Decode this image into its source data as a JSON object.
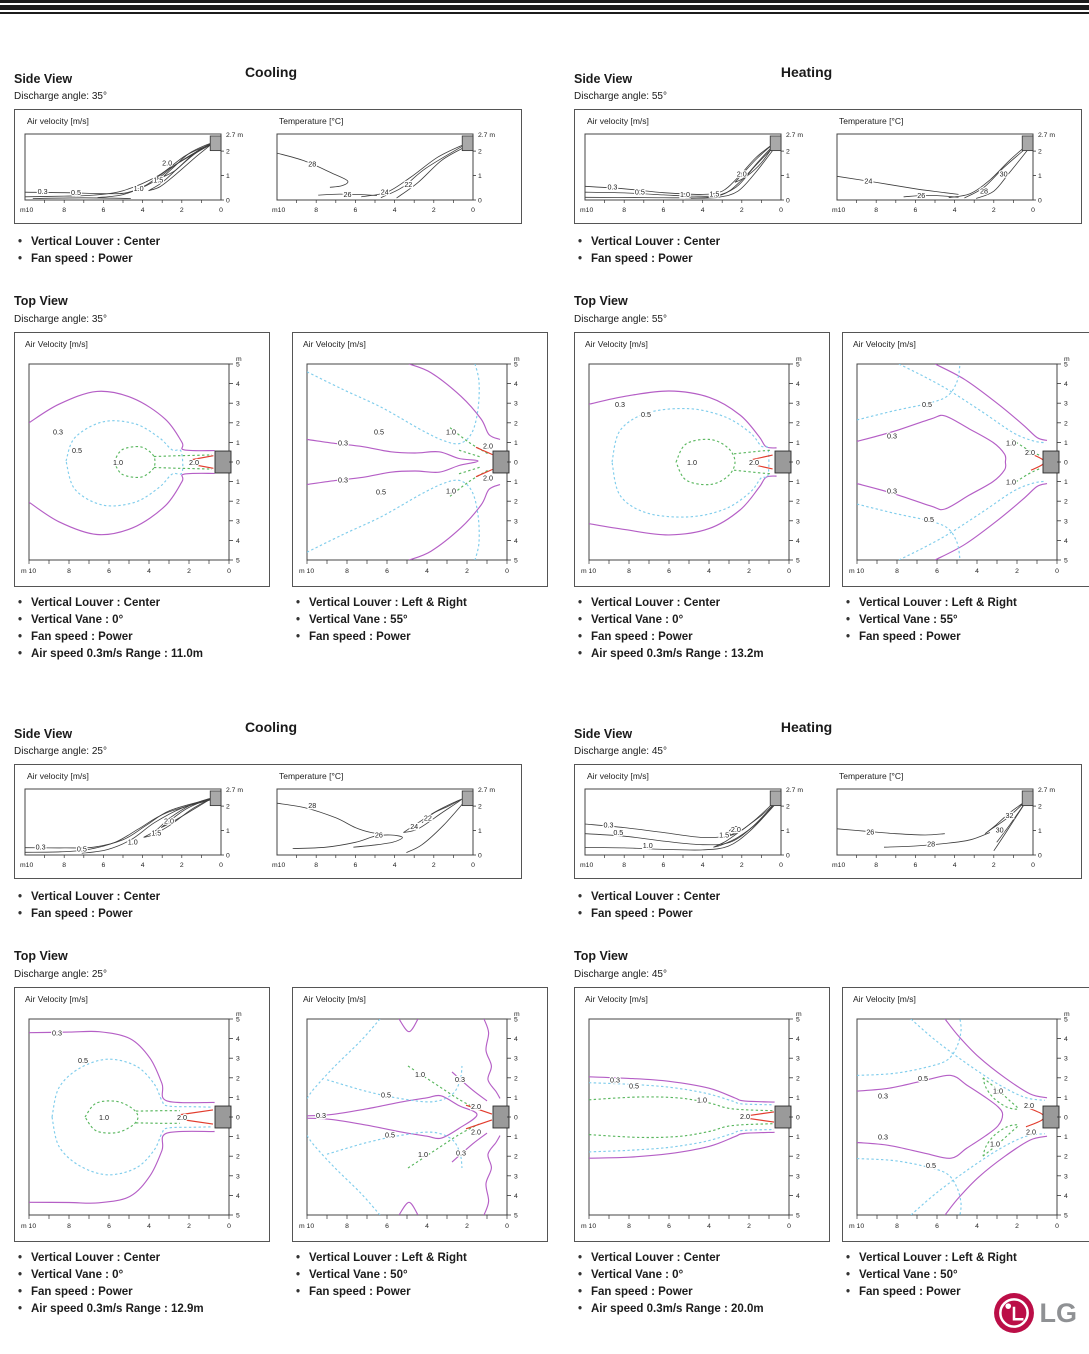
{
  "logo": {
    "text": "LG",
    "symbol_color": "#bb0e47",
    "text_color": "#8f9194"
  },
  "sections": [
    {
      "cooling": {
        "mode": "Cooling",
        "side": {
          "heading": "Side View",
          "discharge": "Discharge angle: 35°",
          "bullets": [
            "Vertical Louver : Center",
            "Fan speed : Power"
          ]
        },
        "top": {
          "heading": "Top View",
          "discharge": "Discharge angle: 35°",
          "panels": [
            {
              "bullets": [
                "Vertical Louver : Center",
                "Vertical Vane : 0°",
                "Fan speed : Power",
                "Air speed 0.3m/s Range : 11.0m"
              ]
            },
            {
              "bullets": [
                "Vertical Louver : Left & Right",
                "Vertical Vane : 55°",
                "Fan speed : Power"
              ]
            }
          ]
        }
      },
      "heating": {
        "mode": "Heating",
        "side": {
          "heading": "Side View",
          "discharge": "Discharge angle: 55°",
          "bullets": [
            "Vertical Louver : Center",
            "Fan speed : Power"
          ]
        },
        "top": {
          "heading": "Top View",
          "discharge": "Discharge angle: 55°",
          "panels": [
            {
              "bullets": [
                "Vertical Louver : Center",
                "Vertical Vane : 0°",
                "Fan speed : Power",
                "Air speed 0.3m/s Range : 13.2m"
              ]
            },
            {
              "bullets": [
                "Vertical Louver : Left & Right",
                "Vertical Vane : 55°",
                "Fan speed : Power"
              ]
            }
          ]
        }
      }
    },
    {
      "cooling": {
        "mode": "Cooling",
        "side": {
          "heading": "Side View",
          "discharge": "Discharge angle: 25°",
          "bullets": [
            "Vertical Louver : Center",
            "Fan speed : Power"
          ]
        },
        "top": {
          "heading": "Top View",
          "discharge": "Discharge angle: 25°",
          "panels": [
            {
              "bullets": [
                "Vertical Louver : Center",
                "Vertical Vane : 0°",
                "Fan speed : Power",
                "Air speed 0.3m/s Range : 12.9m"
              ]
            },
            {
              "bullets": [
                "Vertical Louver : Left & Right",
                "Vertical Vane : 50°",
                "Fan speed : Power"
              ]
            }
          ]
        }
      },
      "heating": {
        "mode": "Heating",
        "side": {
          "heading": "Side View",
          "discharge": "Discharge angle: 45°",
          "bullets": [
            "Vertical Louver : Center",
            "Fan speed : Power"
          ]
        },
        "top": {
          "heading": "Top View",
          "discharge": "Discharge angle: 45°",
          "panels": [
            {
              "bullets": [
                "Vertical Louver : Center",
                "Vertical Vane : 0°",
                "Fan speed : Power",
                "Air speed 0.3m/s Range : 20.0m"
              ]
            },
            {
              "bullets": [
                "Vertical Louver : Left & Right",
                "Vertical Vane : 50°",
                "Fan speed : Power"
              ]
            }
          ]
        }
      }
    }
  ],
  "chart_data": {
    "sv_c35_vel": {
      "type": "contour-side",
      "title": "Air velocity [m/s]",
      "x_ticks": [
        "m10",
        "8",
        "6",
        "4",
        "2",
        "0"
      ],
      "y_ticks": [
        "2.7 m",
        "2",
        "1",
        "0"
      ],
      "xlim": [
        10,
        0
      ],
      "ylim": [
        0,
        2.7
      ],
      "labels": [
        [
          "0.3",
          9.1,
          0.33
        ],
        [
          "0.5",
          7.4,
          0.28
        ],
        [
          "1.0",
          4.2,
          0.45
        ],
        [
          "1.5",
          3.2,
          0.8
        ],
        [
          "2.0",
          2.75,
          1.5
        ]
      ]
    },
    "sv_c35_temp": {
      "type": "contour-side",
      "title": "Temperature [°C]",
      "x_ticks": [
        "m10",
        "8",
        "6",
        "4",
        "2",
        "0"
      ],
      "y_ticks": [
        "2.7 m",
        "2",
        "1",
        "0"
      ],
      "xlim": [
        10,
        0
      ],
      "ylim": [
        0,
        2.7
      ],
      "labels": [
        [
          "28",
          8.2,
          1.45
        ],
        [
          "26",
          6.4,
          0.2
        ],
        [
          "24",
          4.5,
          0.3
        ],
        [
          "22",
          3.3,
          0.62
        ]
      ]
    },
    "sv_h55_vel": {
      "type": "contour-side",
      "title": "Air velocity [m/s]",
      "x_ticks": [
        "m10",
        "8",
        "6",
        "4",
        "2",
        "0"
      ],
      "y_ticks": [
        "2.7 m",
        "2",
        "1",
        "0"
      ],
      "xlim": [
        10,
        0
      ],
      "ylim": [
        0,
        2.7
      ],
      "labels": [
        [
          "0.3",
          8.6,
          0.52
        ],
        [
          "0.5",
          7.2,
          0.3
        ],
        [
          "1.0",
          4.9,
          0.2
        ],
        [
          "1.5",
          3.4,
          0.22
        ],
        [
          "2.0",
          2.0,
          1.05
        ]
      ]
    },
    "sv_h55_temp": {
      "type": "contour-side",
      "title": "Temperature [°C]",
      "x_ticks": [
        "m10",
        "8",
        "6",
        "4",
        "2",
        "0"
      ],
      "y_ticks": [
        "2.7 m",
        "2",
        "1",
        "0"
      ],
      "xlim": [
        10,
        0
      ],
      "ylim": [
        0,
        2.7
      ],
      "labels": [
        [
          "24",
          8.4,
          0.75
        ],
        [
          "26",
          5.7,
          0.16
        ],
        [
          "28",
          2.5,
          0.35
        ],
        [
          "30",
          1.5,
          1.05
        ]
      ]
    },
    "sv_c25_vel": {
      "type": "contour-side",
      "title": "Air velocity [m/s]",
      "x_ticks": [
        "m10",
        "8",
        "6",
        "4",
        "2",
        "0"
      ],
      "y_ticks": [
        "2.7 m",
        "2",
        "1",
        "0"
      ],
      "xlim": [
        10,
        0
      ],
      "ylim": [
        0,
        2.7
      ],
      "labels": [
        [
          "0.3",
          9.2,
          0.3
        ],
        [
          "0.5",
          7.1,
          0.22
        ],
        [
          "1.0",
          4.5,
          0.52
        ],
        [
          "1.5",
          3.3,
          0.88
        ],
        [
          "2.0",
          2.65,
          1.38
        ]
      ]
    },
    "sv_c25_temp": {
      "type": "contour-side",
      "title": "Temperature [°C]",
      "x_ticks": [
        "m10",
        "8",
        "6",
        "4",
        "2",
        "0"
      ],
      "y_ticks": [
        "2.7 m",
        "2",
        "1",
        "0"
      ],
      "xlim": [
        10,
        0
      ],
      "ylim": [
        0,
        2.7
      ],
      "labels": [
        [
          "28",
          8.2,
          2.0
        ],
        [
          "26",
          4.8,
          0.8
        ],
        [
          "24",
          3.0,
          1.15
        ],
        [
          "22",
          2.3,
          1.5
        ]
      ]
    },
    "sv_h45_vel": {
      "type": "contour-side",
      "title": "Air velocity [m/s]",
      "x_ticks": [
        "m10",
        "8",
        "6",
        "4",
        "2",
        "0"
      ],
      "y_ticks": [
        "2.7 m",
        "2",
        "1",
        "0"
      ],
      "xlim": [
        10,
        0
      ],
      "ylim": [
        0,
        2.7
      ],
      "labels": [
        [
          "0.3",
          8.8,
          1.2
        ],
        [
          "0.5",
          8.3,
          0.9
        ],
        [
          "1.0",
          6.8,
          0.36
        ],
        [
          "1.5",
          2.9,
          0.8
        ],
        [
          "2.0",
          2.3,
          1.02
        ]
      ]
    },
    "sv_h45_temp": {
      "type": "contour-side",
      "title": "Temperature [°C]",
      "x_ticks": [
        "m10",
        "8",
        "6",
        "4",
        "2",
        "0"
      ],
      "y_ticks": [
        "2.7 m",
        "2",
        "1",
        "0"
      ],
      "xlim": [
        10,
        0
      ],
      "ylim": [
        0,
        2.7
      ],
      "labels": [
        [
          "26",
          8.3,
          0.92
        ],
        [
          "28",
          5.2,
          0.42
        ],
        [
          "30",
          1.7,
          1.0
        ],
        [
          "32",
          1.2,
          1.6
        ]
      ]
    },
    "tv_c35_center": {
      "type": "contour-top",
      "title": "Air Velocity [m/s]",
      "x_ticks": [
        "m 10",
        "8",
        "6",
        "4",
        "2",
        "0"
      ],
      "y_unit": "m",
      "y_ticks": [
        "5",
        "4",
        "3",
        "2",
        "1",
        "0",
        "1",
        "2",
        "3",
        "4",
        "5"
      ],
      "xlim": [
        10,
        0
      ],
      "ylim": [
        -5,
        5
      ],
      "labels": [
        [
          "0.3",
          8.55,
          -1.5
        ],
        [
          "0.5",
          7.6,
          -0.55
        ],
        [
          "1.0",
          5.55,
          0.05
        ],
        [
          "2.0",
          1.75,
          0.05
        ]
      ]
    },
    "tv_c35_lr": {
      "type": "contour-top",
      "title": "Air Velocity [m/s]",
      "x_ticks": [
        "m 10",
        "8",
        "6",
        "4",
        "2",
        "0"
      ],
      "y_unit": "m",
      "y_ticks": [
        "5",
        "4",
        "3",
        "2",
        "1",
        "0",
        "1",
        "2",
        "3",
        "4",
        "5"
      ],
      "xlim": [
        10,
        0
      ],
      "ylim": [
        -5,
        5
      ],
      "labels": [
        [
          "0.5",
          6.4,
          -1.5
        ],
        [
          "0.3",
          8.2,
          -0.95
        ],
        [
          "1.0",
          2.8,
          -1.5
        ],
        [
          "2.0",
          0.95,
          -0.8
        ],
        [
          "2.0",
          0.95,
          0.85
        ],
        [
          "0.3",
          8.2,
          0.95
        ],
        [
          "0.5",
          6.3,
          1.55
        ],
        [
          "1.0",
          2.8,
          1.5
        ]
      ]
    },
    "tv_h55_center": {
      "type": "contour-top",
      "title": "Air Velocity [m/s]",
      "x_ticks": [
        "m 10",
        "8",
        "6",
        "4",
        "2",
        "0"
      ],
      "y_unit": "m",
      "y_ticks": [
        "5",
        "4",
        "3",
        "2",
        "1",
        "0",
        "1",
        "2",
        "3",
        "4",
        "5"
      ],
      "xlim": [
        10,
        0
      ],
      "ylim": [
        -5,
        5
      ],
      "labels": [
        [
          "0.3",
          8.45,
          -2.9
        ],
        [
          "0.5",
          7.15,
          -2.4
        ],
        [
          "1.0",
          4.85,
          0.05
        ],
        [
          "2.0",
          1.75,
          0.05
        ]
      ]
    },
    "tv_h55_lr": {
      "type": "contour-top",
      "title": "Air Velocity [m/s]",
      "x_ticks": [
        "m 10",
        "8",
        "6",
        "4",
        "2",
        "0"
      ],
      "y_unit": "m",
      "y_ticks": [
        "5",
        "4",
        "3",
        "2",
        "1",
        "0",
        "1",
        "2",
        "3",
        "4",
        "5"
      ],
      "xlim": [
        10,
        0
      ],
      "ylim": [
        -5,
        5
      ],
      "labels": [
        [
          "0.5",
          6.5,
          -2.9
        ],
        [
          "0.3",
          8.25,
          -1.3
        ],
        [
          "1.0",
          2.3,
          -0.95
        ],
        [
          "2.0",
          1.35,
          -0.45
        ],
        [
          "1.0",
          2.3,
          1.05
        ],
        [
          "0.3",
          8.25,
          1.5
        ],
        [
          "0.5",
          6.4,
          2.95
        ]
      ]
    },
    "tv_c25_center": {
      "type": "contour-top",
      "title": "Air Velocity [m/s]",
      "x_ticks": [
        "m 10",
        "8",
        "6",
        "4",
        "2",
        "0"
      ],
      "y_unit": "m",
      "y_ticks": [
        "5",
        "4",
        "3",
        "2",
        "1",
        "0",
        "1",
        "2",
        "3",
        "4",
        "5"
      ],
      "xlim": [
        10,
        0
      ],
      "ylim": [
        -5,
        5
      ],
      "labels": [
        [
          "0.3",
          8.6,
          -4.25
        ],
        [
          "0.5",
          7.3,
          -2.85
        ],
        [
          "1.0",
          6.25,
          0.05
        ],
        [
          "2.0",
          2.35,
          0.05
        ]
      ]
    },
    "tv_c25_lr": {
      "type": "contour-top",
      "title": "Air Velocity [m/s]",
      "x_ticks": [
        "m 10",
        "8",
        "6",
        "4",
        "2",
        "0"
      ],
      "y_unit": "m",
      "y_ticks": [
        "5",
        "4",
        "3",
        "2",
        "1",
        "0",
        "1",
        "2",
        "3",
        "4",
        "5"
      ],
      "xlim": [
        10,
        0
      ],
      "ylim": [
        -5,
        5
      ],
      "labels": [
        [
          "1.0",
          4.35,
          -2.15
        ],
        [
          "0.3",
          9.3,
          -0.05
        ],
        [
          "0.5",
          6.05,
          -1.1
        ],
        [
          "0.3",
          2.35,
          -1.9
        ],
        [
          "2.0",
          1.55,
          -0.5
        ],
        [
          "2.0",
          1.55,
          0.8
        ],
        [
          "0.5",
          5.85,
          0.95
        ],
        [
          "1.0",
          4.2,
          1.95
        ],
        [
          "0.3",
          2.3,
          1.85
        ]
      ]
    },
    "tv_h45_center": {
      "type": "contour-top",
      "title": "Air Velocity [m/s]",
      "x_ticks": [
        "m 10",
        "8",
        "6",
        "4",
        "2",
        "0"
      ],
      "y_unit": "m",
      "y_ticks": [
        "5",
        "4",
        "3",
        "2",
        "1",
        "0",
        "1",
        "2",
        "3",
        "4",
        "5"
      ],
      "xlim": [
        10,
        0
      ],
      "ylim": [
        -5,
        5
      ],
      "labels": [
        [
          "0.3",
          8.7,
          -1.85
        ],
        [
          "0.5",
          7.75,
          -1.55
        ],
        [
          "1.0",
          4.35,
          -0.85
        ],
        [
          "2.0",
          2.2,
          0.0
        ]
      ]
    },
    "tv_h45_lr": {
      "type": "contour-top",
      "title": "Air Velocity [m/s]",
      "x_ticks": [
        "m 10",
        "8",
        "6",
        "4",
        "2",
        "0"
      ],
      "y_unit": "m",
      "y_ticks": [
        "5",
        "4",
        "3",
        "2",
        "1",
        "0",
        "1",
        "2",
        "3",
        "4",
        "5"
      ],
      "xlim": [
        10,
        0
      ],
      "ylim": [
        -5,
        5
      ],
      "labels": [
        [
          "0.5",
          6.7,
          -1.95
        ],
        [
          "0.3",
          8.7,
          -1.05
        ],
        [
          "1.0",
          2.95,
          -1.3
        ],
        [
          "2.0",
          1.4,
          -0.55
        ],
        [
          "2.0",
          1.3,
          0.78
        ],
        [
          "0.3",
          8.7,
          1.05
        ],
        [
          "1.0",
          3.1,
          1.4
        ],
        [
          "0.5",
          6.3,
          2.5
        ]
      ]
    }
  }
}
